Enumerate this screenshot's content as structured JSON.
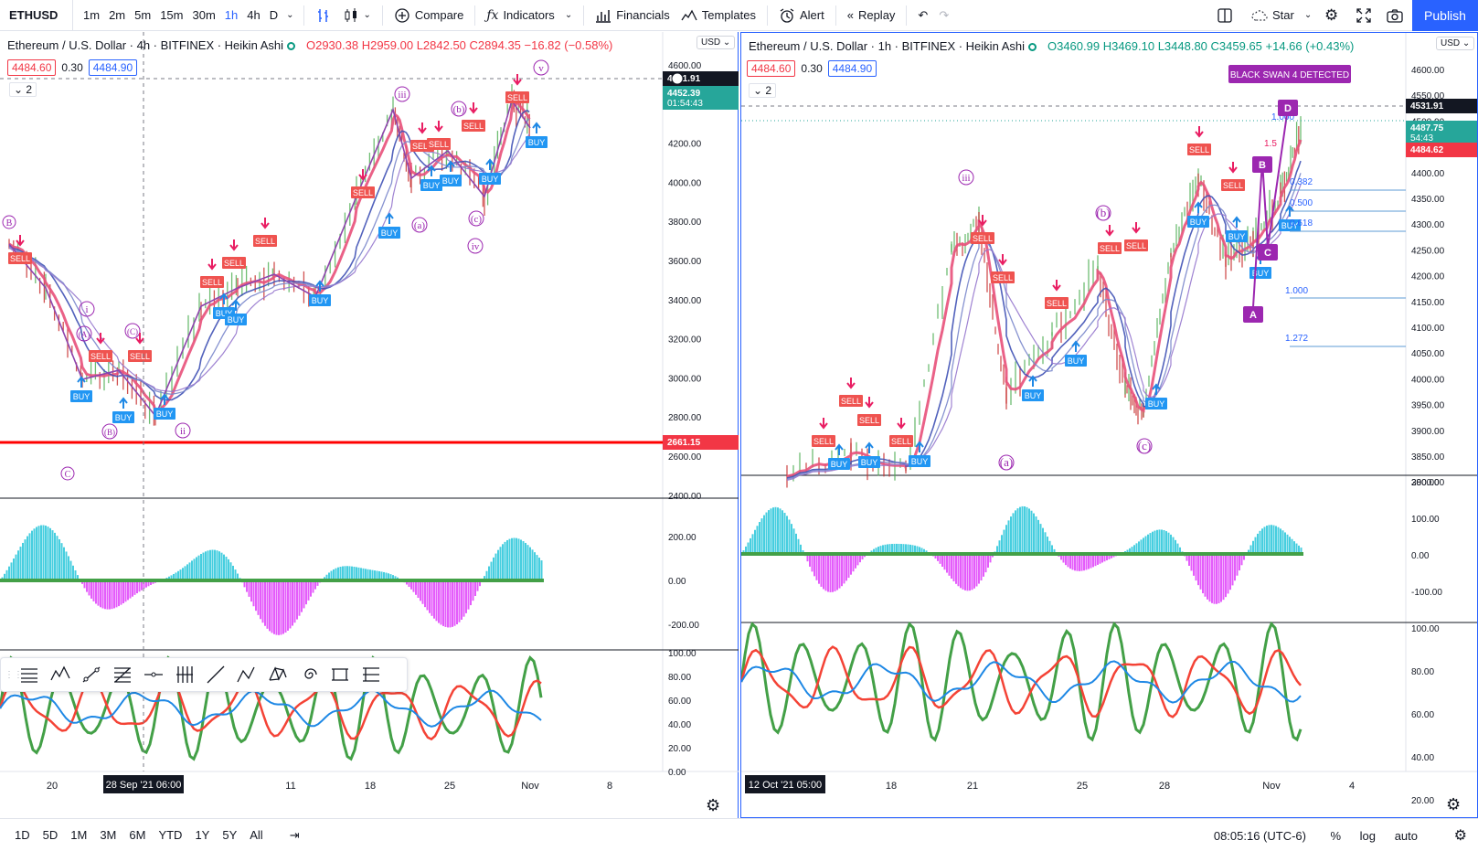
{
  "toolbar": {
    "symbol": "ETHUSD",
    "timeframes": [
      "1m",
      "2m",
      "5m",
      "15m",
      "30m",
      "1h",
      "4h",
      "D"
    ],
    "active_timeframe": "1h",
    "compare": "Compare",
    "indicators": "Indicators",
    "financials": "Financials",
    "templates": "Templates",
    "alert": "Alert",
    "replay": "Replay",
    "star": "Star",
    "publish": "Publish"
  },
  "left": {
    "title": "Ethereum / U.S. Dollar · 4h · BITFINEX · Heikin Ashi",
    "ohlc": "O2930.38 H2959.00 L2842.50 C2894.35 −16.82 (−0.58%)",
    "bid": "4484.60",
    "spread": "0.30",
    "ask": "4484.90",
    "collapse": "2",
    "currency": "USD",
    "price_ticks": [
      "4600.00",
      "4400.00",
      "4200.00",
      "4000.00",
      "3800.00",
      "3600.00",
      "3400.00",
      "3200.00",
      "3000.00",
      "2800.00",
      "2600.00",
      "2400.00"
    ],
    "macd_ticks": [
      "200.00",
      "0.00",
      "-200.00"
    ],
    "rsi_ticks": [
      "100.00",
      "80.00",
      "60.00",
      "40.00",
      "20.00",
      "0.00"
    ],
    "date_labels": [
      "20",
      "11",
      "18",
      "25",
      "Nov",
      "8"
    ],
    "crosshair_date": "28 Sep '21  06:00",
    "last_price": "4531.91",
    "current_price": "4452.39",
    "countdown": "01:54:43",
    "support_price": "2661.15",
    "wave_labels": [
      "iii",
      "v",
      "iv",
      "ii",
      "i",
      "B",
      "C",
      "(b)",
      "(a)",
      "(c)",
      "(A)",
      "(B)",
      "(C)",
      "C"
    ],
    "signals": {
      "sell": "SELL",
      "buy": "BUY"
    }
  },
  "right": {
    "title": "Ethereum / U.S. Dollar · 1h · BITFINEX · Heikin Ashi",
    "ohlc": "O3460.99 H3469.10 L3448.80 C3459.65 +14.66 (+0.43%)",
    "bid": "4484.60",
    "spread": "0.30",
    "ask": "4484.90",
    "collapse": "2",
    "currency": "USD",
    "price_ticks": [
      "4600.00",
      "4550.00",
      "4500.00",
      "4450.00",
      "4400.00",
      "4350.00",
      "4300.00",
      "4250.00",
      "4200.00",
      "4150.00",
      "4100.00",
      "4050.00",
      "4000.00",
      "3950.00",
      "3900.00",
      "3850.00",
      "3800.00"
    ],
    "macd_ticks": [
      "200.00",
      "100.00",
      "0.00",
      "-100.00"
    ],
    "rsi_ticks": [
      "100.00",
      "80.00",
      "60.00",
      "40.00",
      "20.00"
    ],
    "date_labels": [
      "18",
      "21",
      "25",
      "28",
      "Nov",
      "4"
    ],
    "crosshair_date": "12 Oct '21  05:00",
    "last_price": "4531.91",
    "current_price": "4487.75",
    "countdown": "54:43",
    "red_price": "4484.62",
    "banner": "BLACK SWAN 4 DETECTED",
    "fib_levels": [
      "1.000",
      "1.272",
      "0.382",
      "0.500",
      "0.618",
      "1.000",
      "1.5"
    ],
    "pattern_labels": [
      "A",
      "B",
      "C",
      "D"
    ],
    "wave_labels": [
      "iii",
      "(a)",
      "(b)",
      "(c)"
    ]
  },
  "bottom": {
    "ranges": [
      "1D",
      "5D",
      "1M",
      "3M",
      "6M",
      "YTD",
      "1Y",
      "5Y",
      "All"
    ],
    "time": "08:05:16 (UTC-6)",
    "percent": "%",
    "log": "log",
    "auto": "auto"
  },
  "colors": {
    "accent": "#2962ff",
    "up": "#089981",
    "down": "#f23645",
    "ema_pink": "#e8507a",
    "purple": "#9c27b0",
    "macd_pos": "#26c6da",
    "macd_neg": "#e040fb",
    "rsi_green": "#43a047",
    "rsi_red": "#f44336",
    "rsi_blue": "#1e88e5"
  }
}
